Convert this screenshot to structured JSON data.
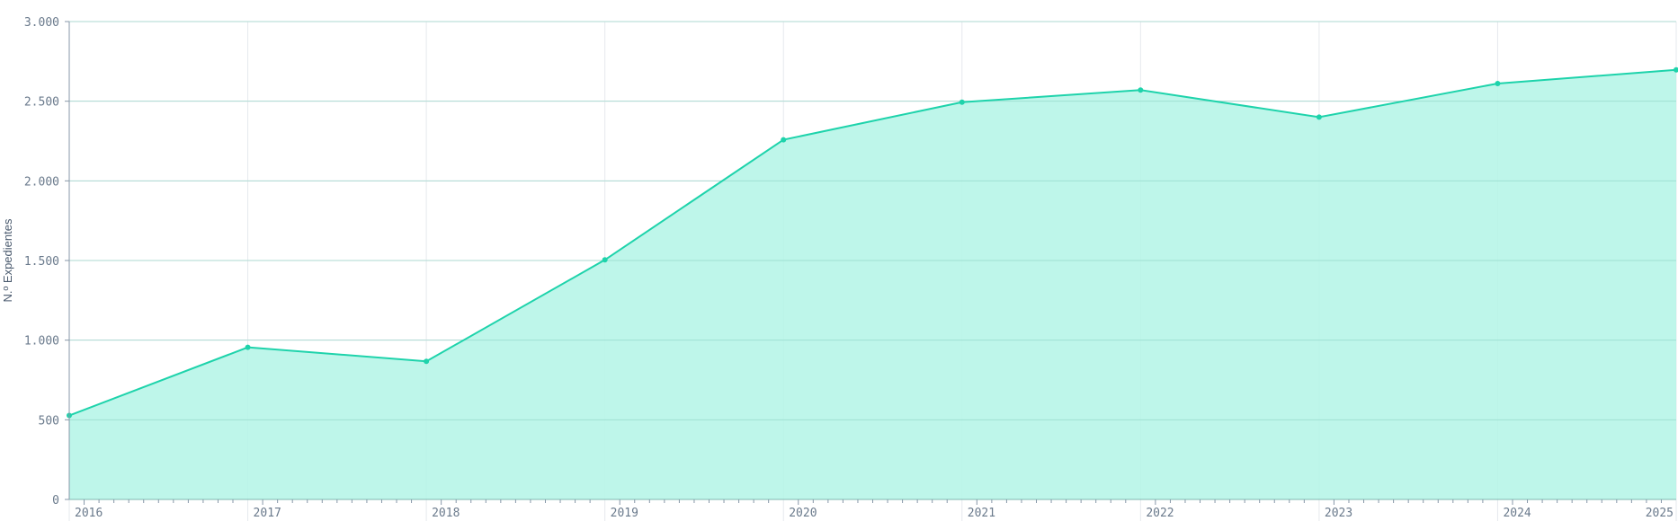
{
  "chart_data": {
    "type": "area",
    "title": "",
    "xlabel": "",
    "ylabel": "N.º Expedientes",
    "x": [
      "2016",
      "2017",
      "2018",
      "2019",
      "2020",
      "2021",
      "2022",
      "2023",
      "2024",
      "2025"
    ],
    "series": [
      {
        "values": [
          527,
          955,
          867,
          1504,
          2258,
          2494,
          2570,
          2400,
          2611,
          2697
        ]
      }
    ],
    "ylim": [
      0,
      3000
    ],
    "yticks": [
      0,
      500,
      1000,
      1500,
      2000,
      2500,
      3000
    ],
    "ytick_labels": [
      "0",
      "500",
      "1.000",
      "1.500",
      "2.000",
      "2.500",
      "3.000"
    ],
    "xtick_labels": [
      "2016",
      "2017",
      "2018",
      "2019",
      "2020",
      "2021",
      "2022",
      "2023",
      "2024",
      "2025"
    ],
    "grid": true,
    "legend": "none",
    "colors": {
      "line": "#1ed3ab",
      "fill": "#b3f5e6",
      "grid": "#d6dce2",
      "axis": "#8797a8",
      "text": "#6a7a8c"
    }
  }
}
